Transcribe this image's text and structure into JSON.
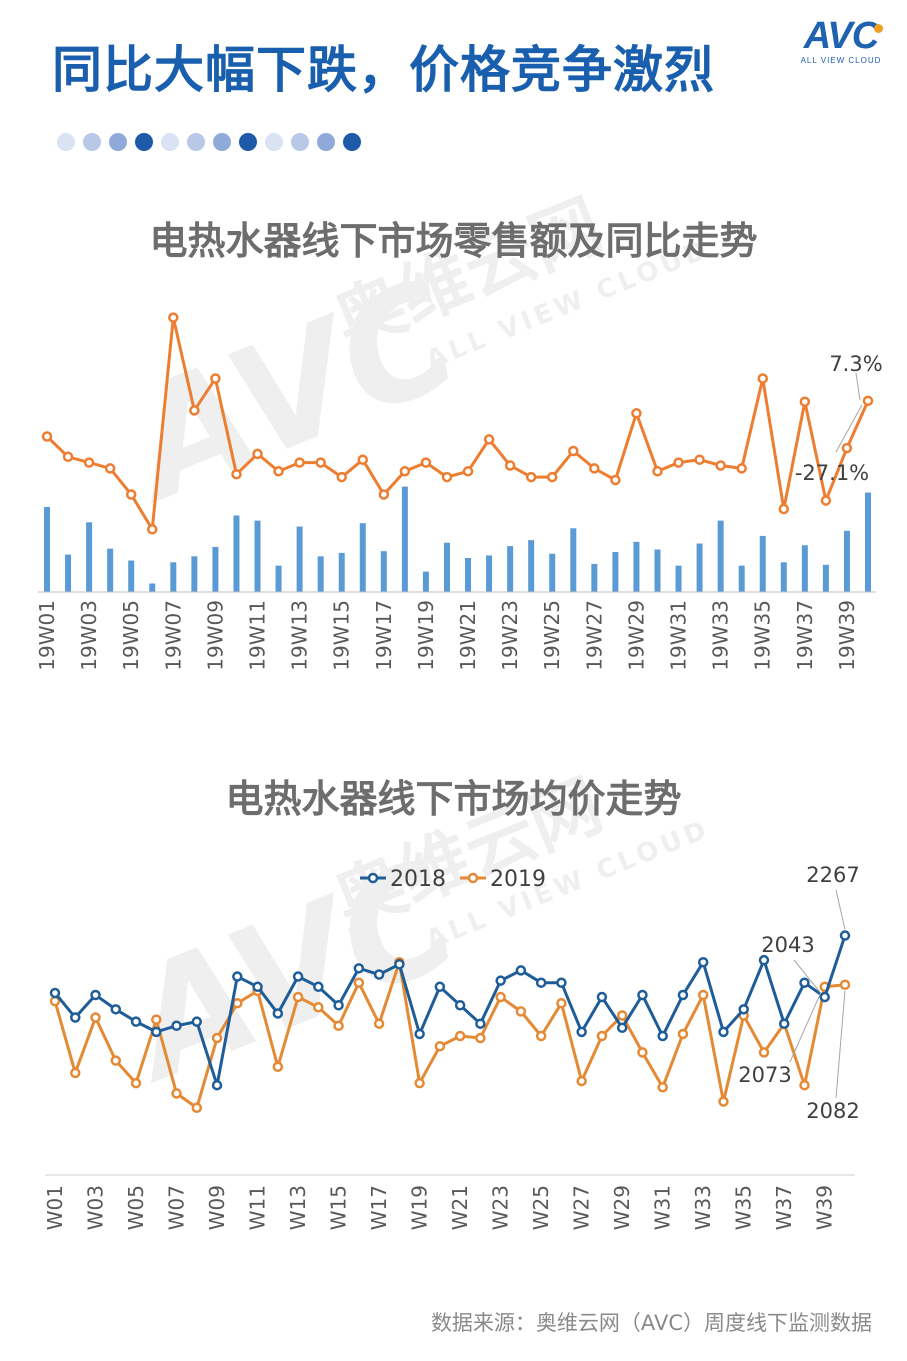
{
  "header": {
    "title": "同比大幅下跌，价格竞争激烈",
    "logo_text": "AVC",
    "logo_subtext": "ALL VIEW CLOUD",
    "dot_colors": [
      "#d9e3f3",
      "#b8c8e6",
      "#8fa9d8",
      "#1e5aa8",
      "#d9e3f3",
      "#b8c8e6",
      "#8fa9d8",
      "#1e5aa8",
      "#d9e3f3",
      "#b8c8e6",
      "#8fa9d8",
      "#1e5aa8"
    ]
  },
  "watermark": {
    "main": "AVC",
    "cn": "奥维云网",
    "en": "ALL VIEW CLOUD"
  },
  "source": "数据来源：奥维云网（AVC）周度线下监测数据",
  "chart_data": [
    {
      "type": "bar+line",
      "title": "电热水器线下市场零售额及同比走势",
      "categories": [
        "19W01",
        "19W02",
        "19W03",
        "19W04",
        "19W05",
        "19W06",
        "19W07",
        "19W08",
        "19W09",
        "19W10",
        "19W11",
        "19W12",
        "19W13",
        "19W14",
        "19W15",
        "19W16",
        "19W17",
        "19W18",
        "19W19",
        "19W20",
        "19W21",
        "19W22",
        "19W23",
        "19W24",
        "19W25",
        "19W26",
        "19W27",
        "19W28",
        "19W29",
        "19W30",
        "19W31",
        "19W32",
        "19W33",
        "19W34",
        "19W35",
        "19W36",
        "19W37",
        "19W38",
        "19W39",
        "19W40"
      ],
      "tick_labels": [
        "19W01",
        "19W03",
        "19W05",
        "19W07",
        "19W09",
        "19W11",
        "19W13",
        "19W15",
        "19W17",
        "19W19",
        "19W21",
        "19W23",
        "19W25",
        "19W27",
        "19W29",
        "19W31",
        "19W33",
        "19W35",
        "19W37",
        "19W39"
      ],
      "bar_series": {
        "name": "零售额",
        "color": "#5b9bd5",
        "values": [
          100,
          44,
          82,
          51,
          37,
          10,
          35,
          42,
          53,
          90,
          84,
          31,
          77,
          42,
          46,
          81,
          48,
          124,
          24,
          58,
          40,
          43,
          54,
          61,
          45,
          75,
          33,
          47,
          59,
          50,
          31,
          57,
          84,
          31,
          66,
          35,
          55,
          32,
          72,
          117
        ]
      },
      "line_series": {
        "name": "同比",
        "color": "#ed7d31",
        "values": [
          -5,
          -12,
          -14,
          -16,
          -25,
          -37,
          36,
          4,
          15,
          -18,
          -11,
          -17,
          -14,
          -14,
          -19,
          -13,
          -25,
          -17,
          -14,
          -19,
          -17,
          -6,
          -15,
          -19,
          -19,
          -10,
          -16,
          -20,
          3,
          -17,
          -14,
          -13,
          -15,
          -16,
          15,
          -30,
          7,
          -27.1,
          -9,
          7.3
        ]
      },
      "annotations": [
        {
          "category": "19W40",
          "label": "7.3%"
        },
        {
          "category": "19W40",
          "label": "-27.1%"
        }
      ]
    },
    {
      "type": "line",
      "title": "电热水器线下市场均价走势",
      "categories": [
        "W01",
        "W02",
        "W03",
        "W04",
        "W05",
        "W06",
        "W07",
        "W08",
        "W09",
        "W10",
        "W11",
        "W12",
        "W13",
        "W14",
        "W15",
        "W16",
        "W17",
        "W18",
        "W19",
        "W20",
        "W21",
        "W22",
        "W23",
        "W24",
        "W25",
        "W26",
        "W27",
        "W28",
        "W29",
        "W30",
        "W31",
        "W32",
        "W33",
        "W34",
        "W35",
        "W36",
        "W37",
        "W38",
        "W39",
        "W40"
      ],
      "tick_labels": [
        "W01",
        "W03",
        "W05",
        "W07",
        "W09",
        "W11",
        "W13",
        "W15",
        "W17",
        "W19",
        "W21",
        "W23",
        "W25",
        "W27",
        "W29",
        "W31",
        "W33",
        "W35",
        "W37",
        "W39"
      ],
      "legend": [
        "2018",
        "2019"
      ],
      "series": [
        {
          "name": "2018",
          "color": "#1f5d99",
          "values": [
            2111,
            2099,
            2110,
            2103,
            2097,
            2092,
            2095,
            2097,
            2066,
            2119,
            2114,
            2101,
            2119,
            2114,
            2105,
            2123,
            2120,
            2125,
            2091,
            2114,
            2105,
            2096,
            2117,
            2122,
            2116,
            2116,
            2092,
            2109,
            2094,
            2110,
            2090,
            2110,
            2126,
            2092,
            2103,
            2127,
            2096,
            2116,
            2109,
            2139
          ]
        },
        {
          "name": "2019",
          "color": "#e58a34",
          "values": [
            2107,
            2072,
            2099,
            2078,
            2067,
            2098,
            2062,
            2055,
            2089,
            2106,
            2112,
            2075,
            2109,
            2104,
            2095,
            2116,
            2096,
            2126,
            2067,
            2085,
            2090,
            2089,
            2109,
            2102,
            2090,
            2106,
            2068,
            2090,
            2100,
            2082,
            2065,
            2091,
            2110,
            2058,
            2100,
            2082,
            2096,
            2066,
            2114,
            2115
          ]
        }
      ],
      "annotations": [
        {
          "label": "2267"
        },
        {
          "label": "2043"
        },
        {
          "label": "2073"
        },
        {
          "label": "2082"
        }
      ]
    }
  ]
}
